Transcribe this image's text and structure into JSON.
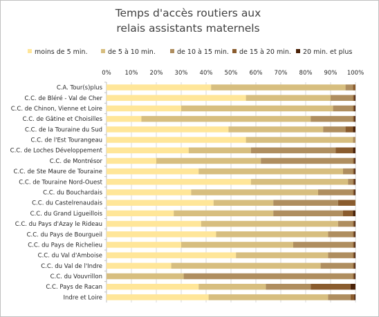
{
  "chart_data": {
    "type": "bar",
    "orientation": "horizontal",
    "stacked": "percent",
    "title_lines": [
      "Temps d'accès routiers aux",
      "relais assistants maternels"
    ],
    "legend_position": "top",
    "grid": true,
    "xlim": [
      0,
      100
    ],
    "x_ticks": [
      "0%",
      "10%",
      "20%",
      "30%",
      "40%",
      "50%",
      "60%",
      "70%",
      "80%",
      "90%",
      "100%"
    ],
    "categories": [
      "C.A. Tour(s)plus",
      "C.C. de Bléré - Val de Cher",
      "C.C. de Chinon, Vienne et Loire",
      "C.C. de Gâtine et Choisilles",
      "C.C. de la Touraine du Sud",
      "C.C. de l'Est Tourangeau",
      "C.C. de Loches Développement",
      "C.C. de Montrésor",
      "C.C. de Ste Maure de Touraine",
      "C.C. de Touraine Nord-Ouest",
      "C.C. du Bouchardais",
      "C.C. du Castelrenaudais",
      "C.C. du Grand Ligueillois",
      "C.C. du Pays d'Azay le Rideau",
      "C.C. du Pays de Bourgueil",
      "C.C. du Pays de Richelieu",
      "C.C. du Val d'Amboise",
      "C.C. du Val de l'Indre",
      "C.C. du Vouvrillon",
      "C.C. Pays de Racan",
      "Indre et Loire"
    ],
    "series": [
      {
        "name": "moins de 5 min.",
        "color": "#FFE699",
        "values": [
          42,
          56,
          30,
          14,
          49,
          56,
          33,
          20,
          37,
          58,
          34,
          43,
          27,
          38,
          44,
          30,
          52,
          26,
          0,
          37,
          41
        ]
      },
      {
        "name": "de 5 à 10 min.",
        "color": "#D7BE7F",
        "values": [
          54,
          34,
          61,
          68,
          38,
          43,
          25,
          42,
          58,
          39,
          51,
          24,
          40,
          55,
          45,
          45,
          37,
          60,
          31,
          27,
          48
        ]
      },
      {
        "name": "de 10 à 15 min.",
        "color": "#AF8E5F",
        "values": [
          3,
          9,
          8,
          17,
          9,
          1,
          34,
          37,
          4,
          2,
          14,
          26,
          28,
          6,
          10,
          24,
          10,
          13,
          68,
          18,
          9
        ]
      },
      {
        "name": "de 15 à 20 min.",
        "color": "#8A5C2E",
        "values": [
          1,
          0.5,
          0.5,
          0.5,
          3,
          0,
          7,
          0.5,
          0.5,
          0.5,
          0.5,
          7,
          4,
          0.5,
          0.5,
          0.5,
          0.5,
          0.5,
          0.5,
          16,
          1.5
        ]
      },
      {
        "name": "20 min. et plus",
        "color": "#4A2208",
        "values": [
          0,
          0.5,
          0.5,
          0.5,
          1,
          0,
          1,
          0.5,
          0.5,
          0.5,
          0.5,
          0,
          1,
          0.5,
          0.5,
          0.5,
          0.5,
          0.5,
          0.5,
          2,
          0.5
        ]
      }
    ]
  }
}
